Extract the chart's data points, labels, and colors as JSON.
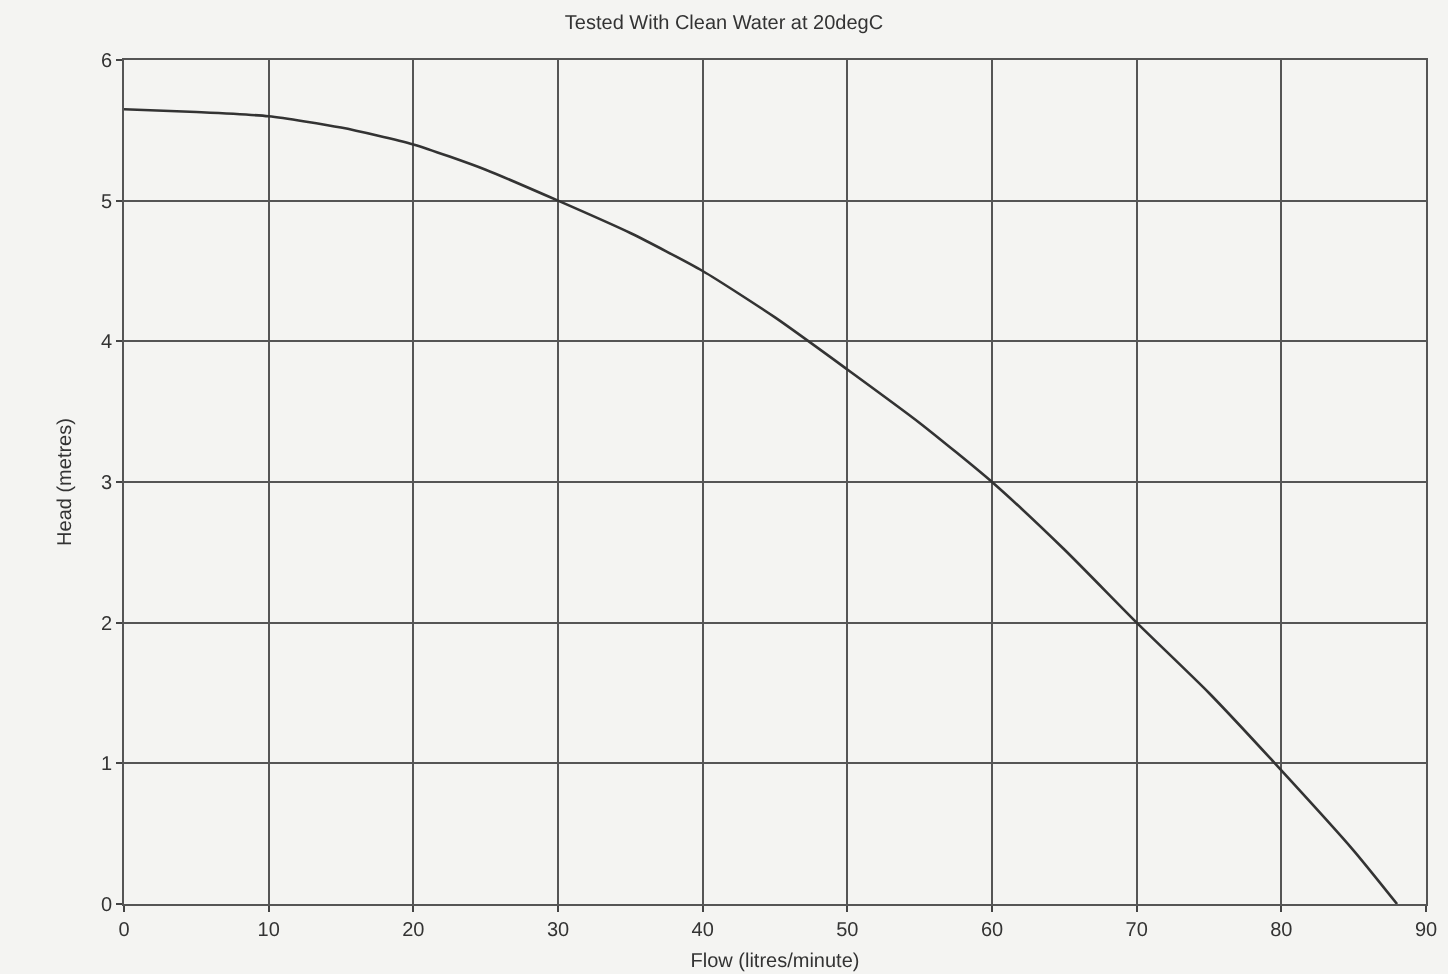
{
  "chart_data": {
    "type": "line",
    "title": "Tested With Clean Water at 20degC",
    "xlabel": "Flow (litres/minute)",
    "ylabel": "Head (metres)",
    "x": [
      0,
      5,
      10,
      15,
      20,
      25,
      30,
      35,
      40,
      45,
      50,
      55,
      60,
      65,
      70,
      75,
      80,
      85,
      88
    ],
    "series": [
      {
        "color": "#333333",
        "values": [
          5.65,
          5.63,
          5.6,
          5.52,
          5.4,
          5.22,
          5.0,
          4.77,
          4.5,
          4.17,
          3.8,
          3.42,
          3.0,
          2.52,
          2.0,
          1.5,
          0.95,
          0.38,
          0
        ]
      }
    ],
    "xlim": [
      0,
      90
    ],
    "xticks": [
      0,
      10,
      20,
      30,
      40,
      50,
      60,
      70,
      80,
      90
    ],
    "ylim": [
      0,
      6
    ],
    "yticks": [
      0,
      1,
      2,
      3,
      4,
      5,
      6
    ],
    "grid": true,
    "marker": "none",
    "line_style": "solid"
  }
}
